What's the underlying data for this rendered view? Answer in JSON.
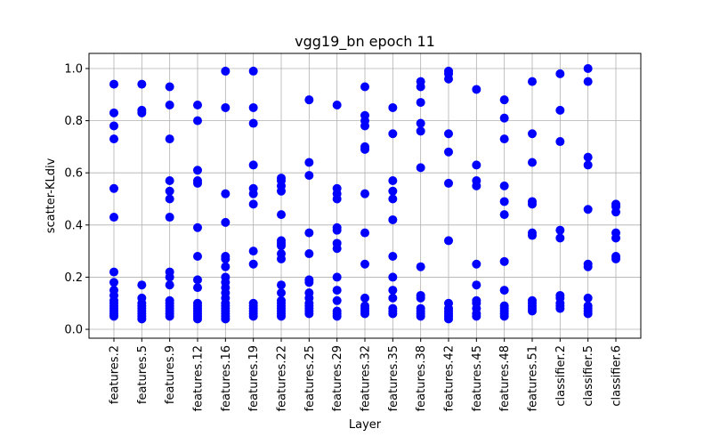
{
  "chart_data": {
    "type": "scatter",
    "title": "vgg19_bn epoch 11",
    "x_label": "Layer",
    "y_label": "scatter-KLdiv",
    "categories": [
      "features.2",
      "features.5",
      "features.9",
      "features.12",
      "features.16",
      "features.19",
      "features.22",
      "features.25",
      "features.29",
      "features.32",
      "features.35",
      "features.38",
      "features.42",
      "features.45",
      "features.48",
      "features.51",
      "classifier.2",
      "classifier.5",
      "classifier.6"
    ],
    "values": [
      [
        0.94,
        0.83,
        0.78,
        0.73,
        0.54,
        0.43,
        0.22,
        0.18,
        0.15,
        0.13,
        0.11,
        0.1,
        0.09,
        0.08,
        0.07,
        0.06,
        0.05
      ],
      [
        0.94,
        0.84,
        0.83,
        0.17,
        0.12,
        0.1,
        0.09,
        0.08,
        0.07,
        0.06,
        0.05,
        0.04
      ],
      [
        0.93,
        0.86,
        0.73,
        0.57,
        0.53,
        0.5,
        0.43,
        0.22,
        0.2,
        0.17,
        0.11,
        0.1,
        0.09,
        0.08,
        0.07,
        0.06,
        0.05
      ],
      [
        0.86,
        0.8,
        0.61,
        0.57,
        0.56,
        0.39,
        0.28,
        0.19,
        0.16,
        0.1,
        0.09,
        0.08,
        0.07,
        0.06,
        0.05,
        0.04
      ],
      [
        0.99,
        0.85,
        0.52,
        0.41,
        0.28,
        0.27,
        0.24,
        0.2,
        0.18,
        0.16,
        0.14,
        0.12,
        0.1,
        0.09,
        0.08,
        0.07,
        0.06,
        0.05,
        0.04
      ],
      [
        0.99,
        0.85,
        0.79,
        0.63,
        0.54,
        0.52,
        0.48,
        0.3,
        0.25,
        0.1,
        0.09,
        0.08,
        0.07,
        0.06,
        0.05
      ],
      [
        0.58,
        0.57,
        0.55,
        0.53,
        0.44,
        0.34,
        0.33,
        0.32,
        0.29,
        0.27,
        0.17,
        0.14,
        0.11,
        0.1,
        0.09,
        0.08,
        0.07,
        0.06,
        0.05
      ],
      [
        0.88,
        0.64,
        0.59,
        0.37,
        0.29,
        0.19,
        0.18,
        0.14,
        0.12,
        0.1,
        0.09,
        0.08,
        0.07,
        0.06
      ],
      [
        0.86,
        0.54,
        0.52,
        0.5,
        0.39,
        0.38,
        0.33,
        0.31,
        0.2,
        0.15,
        0.11,
        0.07,
        0.06,
        0.05
      ],
      [
        0.93,
        0.82,
        0.8,
        0.78,
        0.7,
        0.69,
        0.52,
        0.37,
        0.25,
        0.12,
        0.09,
        0.08,
        0.07,
        0.06
      ],
      [
        0.85,
        0.75,
        0.57,
        0.53,
        0.5,
        0.42,
        0.28,
        0.2,
        0.15,
        0.12,
        0.08,
        0.07,
        0.06
      ],
      [
        0.95,
        0.93,
        0.87,
        0.79,
        0.76,
        0.62,
        0.24,
        0.13,
        0.12,
        0.08,
        0.07,
        0.06,
        0.05
      ],
      [
        0.99,
        0.98,
        0.96,
        0.75,
        0.68,
        0.56,
        0.34,
        0.1,
        0.08,
        0.07,
        0.06,
        0.05,
        0.04
      ],
      [
        0.92,
        0.63,
        0.57,
        0.55,
        0.25,
        0.17,
        0.11,
        0.1,
        0.08,
        0.06,
        0.05
      ],
      [
        0.88,
        0.81,
        0.73,
        0.55,
        0.49,
        0.44,
        0.26,
        0.15,
        0.09,
        0.08,
        0.07,
        0.06,
        0.05
      ],
      [
        0.95,
        0.75,
        0.64,
        0.49,
        0.48,
        0.37,
        0.36,
        0.11,
        0.1,
        0.09,
        0.08,
        0.07
      ],
      [
        0.98,
        0.84,
        0.72,
        0.38,
        0.35,
        0.13,
        0.12,
        0.1,
        0.09,
        0.08
      ],
      [
        1.0,
        0.95,
        0.66,
        0.63,
        0.46,
        0.25,
        0.24,
        0.12,
        0.09,
        0.08,
        0.07,
        0.06
      ],
      [
        0.48,
        0.47,
        0.45,
        0.37,
        0.35,
        0.28,
        0.27
      ]
    ],
    "color": "#0000ff",
    "ylim": [
      -0.034,
      1.058
    ],
    "yticks": [
      {
        "value": 0,
        "label": "0.0"
      },
      0.2,
      0.4,
      0.6,
      0.8,
      {
        "value": 1,
        "label": "1.0"
      }
    ],
    "grid": true
  }
}
